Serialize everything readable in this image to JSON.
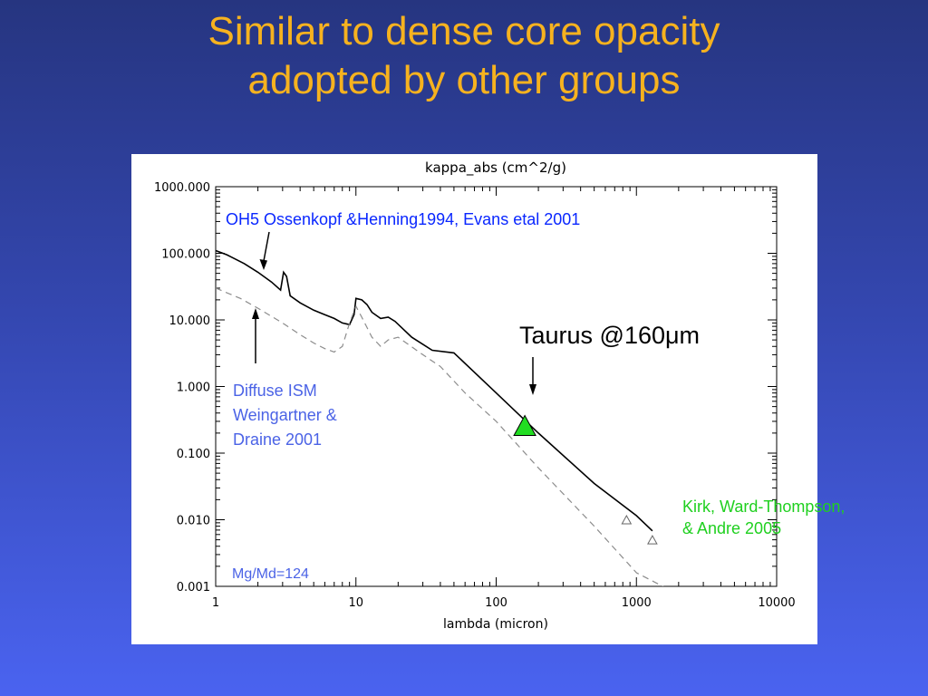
{
  "slide": {
    "title_line1": "Similar to dense core opacity",
    "title_line2": "adopted by other groups"
  },
  "colors": {
    "title": "#f6b21f",
    "ossenkopf_label": "#0a27ff",
    "diffuse_label": "#4b63e6",
    "kirk_label": "#1fd01f",
    "taurus_marker": "#22dd22",
    "model_line": "#000000",
    "diffuse_line": "#8c8c8c"
  },
  "annotations": {
    "ossenkopf": "OH5 Ossenkopf &Henning1994, Evans etal 2001",
    "diffuse_line1": "Diffuse ISM",
    "diffuse_line2": "Weingartner &",
    "diffuse_line3": "Draine 2001",
    "taurus": "Taurus @160μm",
    "kirk_line1": "Kirk, Ward-Thompson,",
    "kirk_line2": "& Andre 2005",
    "mass_ratio": "Mg/Md=124"
  },
  "chart_data": {
    "type": "line",
    "title": "kappa_abs (cm^2/g)",
    "xlabel": "lambda (micron)",
    "ylabel": "",
    "x_scale": "log",
    "y_scale": "log",
    "xlim": [
      1,
      10000
    ],
    "ylim": [
      0.001,
      1000
    ],
    "x_ticks": [
      1,
      10,
      100,
      1000,
      10000
    ],
    "x_tick_labels": [
      "1",
      "10",
      "100",
      "1000",
      "10000"
    ],
    "y_ticks": [
      0.001,
      0.01,
      0.1,
      1,
      10,
      100,
      1000
    ],
    "y_tick_labels": [
      "0.001",
      "0.010",
      "0.100",
      "1.000",
      "10.000",
      "100.000",
      "1000.000"
    ],
    "grid": false,
    "series": [
      {
        "style": "solid",
        "x": [
          1,
          1.2,
          1.6,
          2,
          2.5,
          2.9,
          3.05,
          3.2,
          3.4,
          4,
          5,
          6,
          7,
          8,
          9,
          9.7,
          10,
          11,
          12,
          13,
          15,
          17,
          19,
          25,
          35,
          50,
          100,
          200,
          500,
          1000,
          1300
        ],
        "y": [
          110,
          95,
          70,
          52,
          37,
          28,
          52,
          45,
          23,
          18,
          14,
          12,
          10.5,
          9,
          8.5,
          12,
          21,
          20,
          17,
          13,
          10.5,
          11,
          9.5,
          5.5,
          3.5,
          3.2,
          0.8,
          0.2,
          0.035,
          0.0115,
          0.0068
        ]
      },
      {
        "style": "dashed",
        "x": [
          1,
          1.5,
          2,
          3,
          4,
          5,
          6,
          7,
          8,
          9,
          10,
          11,
          13,
          15,
          17,
          20,
          30,
          40,
          60,
          100,
          200,
          500,
          1000,
          1700
        ],
        "y": [
          30,
          21,
          15,
          9,
          6,
          4.5,
          3.7,
          3.3,
          4,
          9,
          16,
          11,
          5.5,
          4,
          5,
          5.5,
          3,
          2,
          0.8,
          0.3,
          0.06,
          0.008,
          0.0016,
          0.0009
        ]
      },
      {
        "name": "Taurus",
        "style": "marker",
        "marker": "triangle-filled",
        "x": [
          160
        ],
        "y": [
          0.26
        ]
      },
      {
        "name": "Kirk",
        "style": "marker",
        "marker": "triangle-open",
        "x": [
          850,
          1300
        ],
        "y": [
          0.01,
          0.005
        ]
      }
    ]
  }
}
